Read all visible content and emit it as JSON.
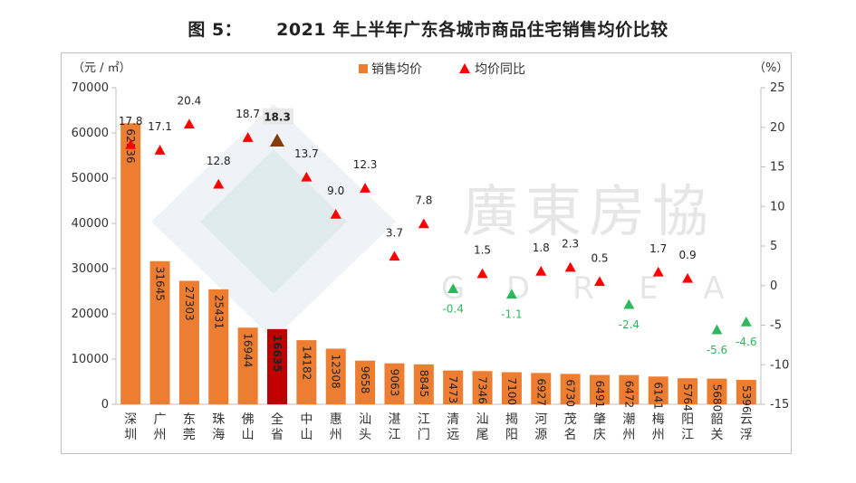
{
  "figure_label": "图 5：",
  "title": "2021 年上半年广东各城市商品住宅销售均价比较",
  "watermark": {
    "text": "廣東房協",
    "letters": [
      "G",
      "D",
      "R",
      "E",
      "A"
    ]
  },
  "colors": {
    "bar": "#ED7D31",
    "bar_highlight": "#C00000",
    "tri_up": "#FF0000",
    "tri_down": "#2EB85C",
    "tri_highlight": "#843C0C",
    "pos_label": "#222222",
    "neg_label": "#2EB85C"
  },
  "chart_data": {
    "type": "bar",
    "categories": [
      "深圳",
      "广州",
      "东莞",
      "珠海",
      "佛山",
      "全省",
      "中山",
      "惠州",
      "汕头",
      "湛江",
      "江门",
      "清远",
      "汕尾",
      "揭阳",
      "河源",
      "茂名",
      "肇庆",
      "潮州",
      "梅州",
      "阳江",
      "韶关",
      "云浮"
    ],
    "series": [
      {
        "name": "销售均价",
        "type": "bar",
        "axis": "left",
        "values": [
          62136,
          31645,
          27303,
          25431,
          16944,
          16635,
          14182,
          12308,
          9658,
          9063,
          8845,
          7473,
          7346,
          7100,
          6927,
          6730,
          6491,
          6472,
          6141,
          5764,
          5680,
          5396
        ],
        "labels": [
          "62136",
          "31645",
          "27303",
          "25431",
          "16944",
          "16635",
          "14182",
          "12308",
          "9658",
          "9063",
          "8845",
          "7473",
          "7346",
          "7100",
          "6927",
          "6730",
          "6491",
          "6472",
          "6141",
          "5764",
          "5680",
          "5396"
        ]
      },
      {
        "name": "均价同比",
        "type": "scatter",
        "marker": "triangle",
        "axis": "right",
        "values": [
          17.8,
          17.1,
          20.4,
          12.8,
          18.7,
          18.3,
          13.7,
          9.0,
          12.3,
          3.7,
          7.8,
          -0.4,
          1.5,
          -1.1,
          1.8,
          2.3,
          0.5,
          -2.4,
          1.7,
          0.9,
          -5.6,
          -4.6
        ],
        "labels": [
          "17.8",
          "17.1",
          "20.4",
          "12.8",
          "18.7",
          "18.3",
          "13.7",
          "9.0",
          "12.3",
          "3.7",
          "7.8",
          "-0.4",
          "1.5",
          "-1.1",
          "1.8",
          "2.3",
          "0.5",
          "-2.4",
          "1.7",
          "0.9",
          "-5.6",
          "-4.6"
        ]
      }
    ],
    "highlight_index": 5,
    "y_left": {
      "label": "（元 / ㎡）",
      "lim": [
        0,
        70000
      ],
      "ticks": [
        "0",
        "10000",
        "20000",
        "30000",
        "40000",
        "50000",
        "60000",
        "70000"
      ]
    },
    "y_right": {
      "label": "（%）",
      "lim": [
        -15,
        25
      ],
      "ticks": [
        "-15",
        "-10",
        "-5",
        "0",
        "5",
        "10",
        "15",
        "20",
        "25"
      ]
    },
    "legend": {
      "position": "top-center",
      "items": [
        "销售均价",
        "均价同比"
      ]
    },
    "grid": false
  }
}
